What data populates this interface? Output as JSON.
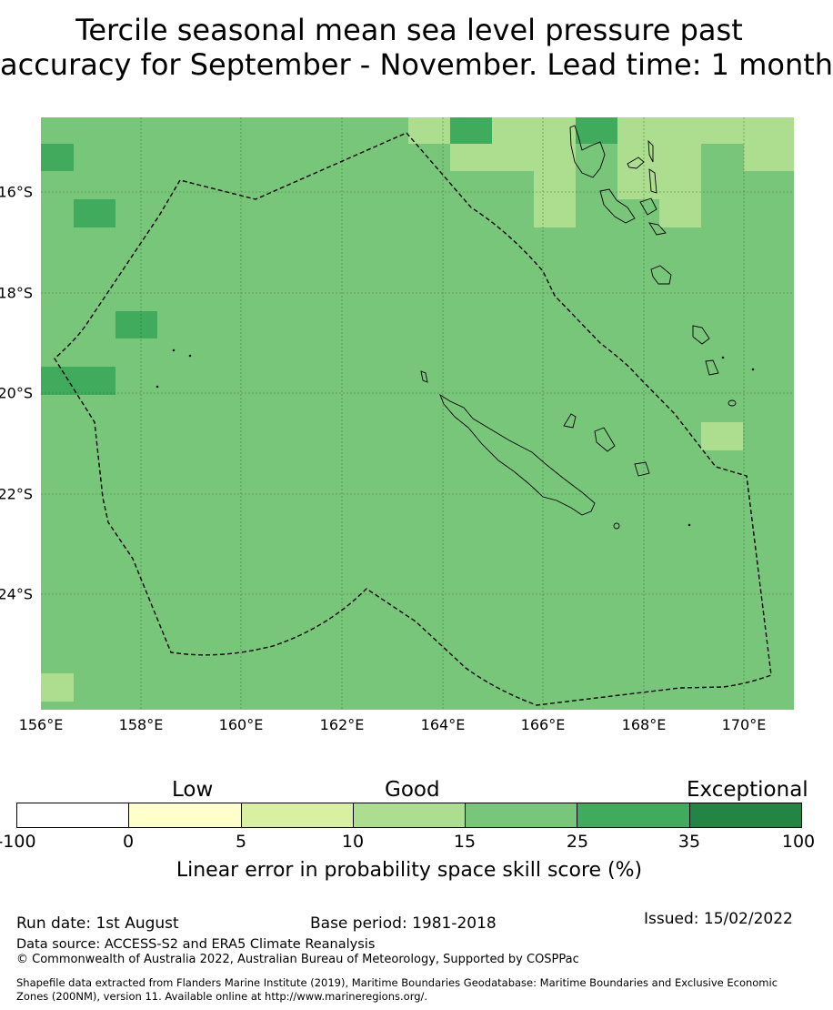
{
  "title_line1": "Tercile seasonal mean sea level pressure past",
  "title_line2": "accuracy for September - November. Lead time: 1 month",
  "map": {
    "lon_ticks": [
      "156°E",
      "158°E",
      "160°E",
      "162°E",
      "164°E",
      "166°E",
      "168°E",
      "170°E"
    ],
    "lat_ticks": [
      "16°S",
      "18°S",
      "20°S",
      "22°S",
      "24°S"
    ],
    "lon_range": [
      156,
      171
    ],
    "lat_range": [
      -26.3,
      -14.5
    ],
    "base_skill_color": "#78c679",
    "boundary_style": "dashed black line (maritime boundary)"
  },
  "legend": {
    "categories": [
      "Low",
      "Good",
      "Exceptional"
    ],
    "ticks": [
      "-100",
      "0",
      "5",
      "10",
      "15",
      "25",
      "35",
      "100"
    ],
    "colors": [
      "#ffffff",
      "#ffffcc",
      "#d9f0a3",
      "#addd8e",
      "#78c679",
      "#41ab5d",
      "#238443"
    ],
    "label": "Linear error in probability space skill score (%)"
  },
  "footer": {
    "run_date": "Run date: 1st August",
    "base_period": "Base period: 1981-2018",
    "issued": "Issued: 15/02/2022",
    "data_source": "Data source: ACCESS-S2 and ERA5 Climate Reanalysis",
    "copyright": "© Commonwealth of Australia 2022, Australian Bureau of Meteorology, Supported by COSPPac",
    "shapefile_line1": "Shapefile data extracted from Flanders Marine Institute (2019), Maritime Boundaries Geodatabase: Maritime Boundaries and Exclusive Economic",
    "shapefile_line2": "Zones (200NM), version 11. Available online at http://www.marineregions.org/."
  }
}
